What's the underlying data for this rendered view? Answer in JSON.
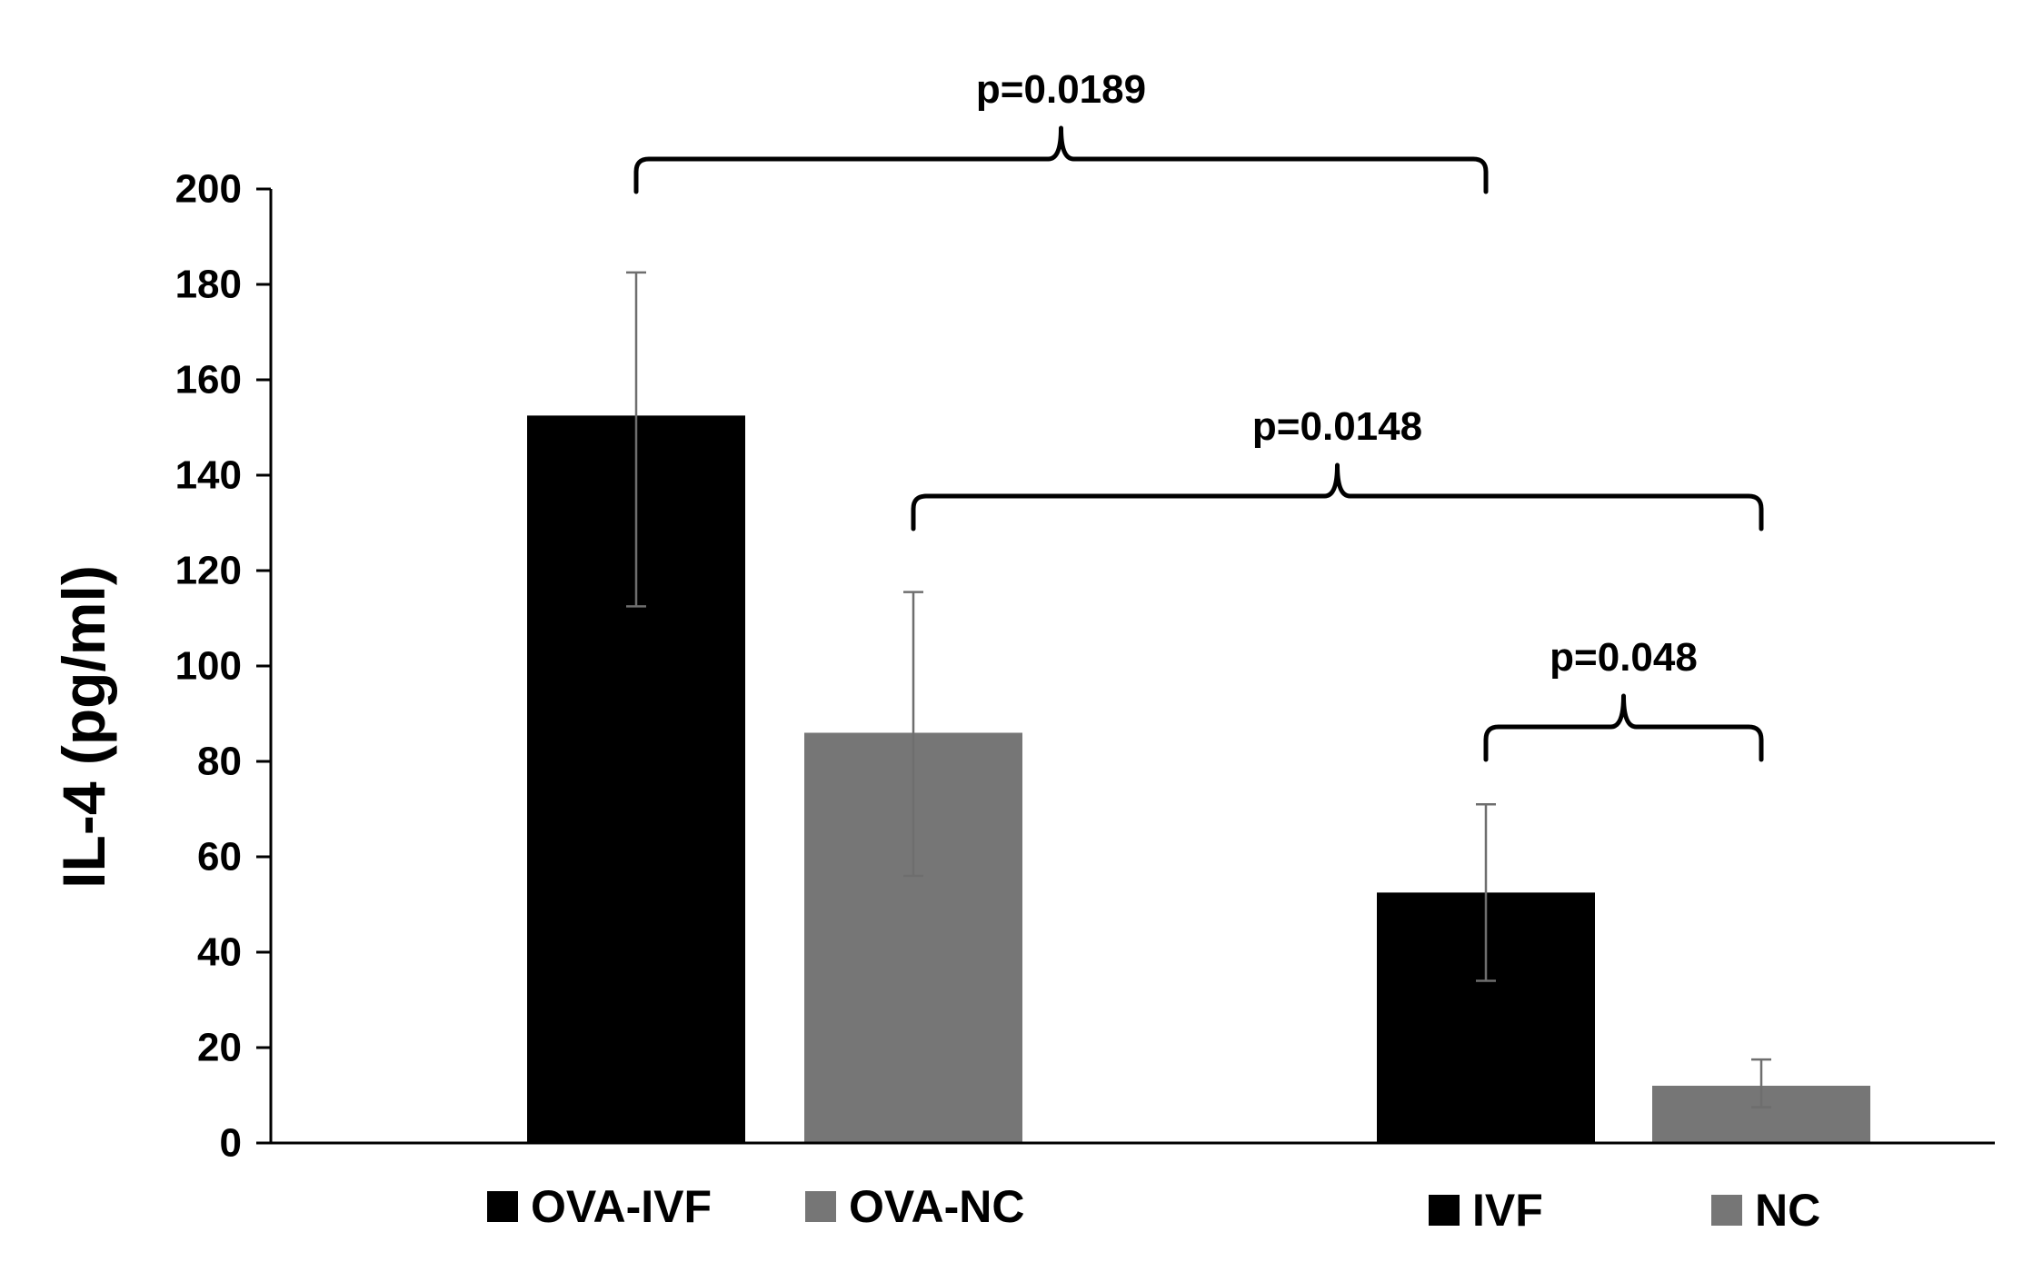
{
  "chart_data": {
    "type": "bar",
    "title": "",
    "xlabel": "",
    "ylabel": "IL-4 (pg/ml)",
    "ylim": [
      0,
      200
    ],
    "yticks": [
      "0",
      "20",
      "40",
      "60",
      "80",
      "100",
      "120",
      "140",
      "160",
      "180",
      "200"
    ],
    "grid": false,
    "bars": [
      {
        "name": "OVA-IVF",
        "value": 152.5,
        "err_low": 112.5,
        "err_high": 182.5,
        "color": "#000000"
      },
      {
        "name": "OVA-NC",
        "value": 86,
        "err_low": 56,
        "err_high": 115.5,
        "color": "#767676"
      },
      {
        "name": "IVF",
        "value": 52.5,
        "err_low": 34,
        "err_high": 71,
        "color": "#000000"
      },
      {
        "name": "NC",
        "value": 12,
        "err_low": 7.5,
        "err_high": 17.5,
        "color": "#767676"
      }
    ],
    "annotations": [
      {
        "text": "p=0.0189",
        "from": "OVA-IVF",
        "to": "IVF"
      },
      {
        "text": "p=0.0148",
        "from": "OVA-NC",
        "to": "NC"
      },
      {
        "text": "p=0.048",
        "from": "IVF",
        "to": "NC"
      }
    ],
    "legend": [
      {
        "label": "OVA-IVF",
        "color": "#000000"
      },
      {
        "label": "OVA-NC",
        "color": "#767676"
      },
      {
        "label": "IVF",
        "color": "#000000"
      },
      {
        "label": "NC",
        "color": "#767676"
      }
    ],
    "legend_position": "bottom"
  }
}
